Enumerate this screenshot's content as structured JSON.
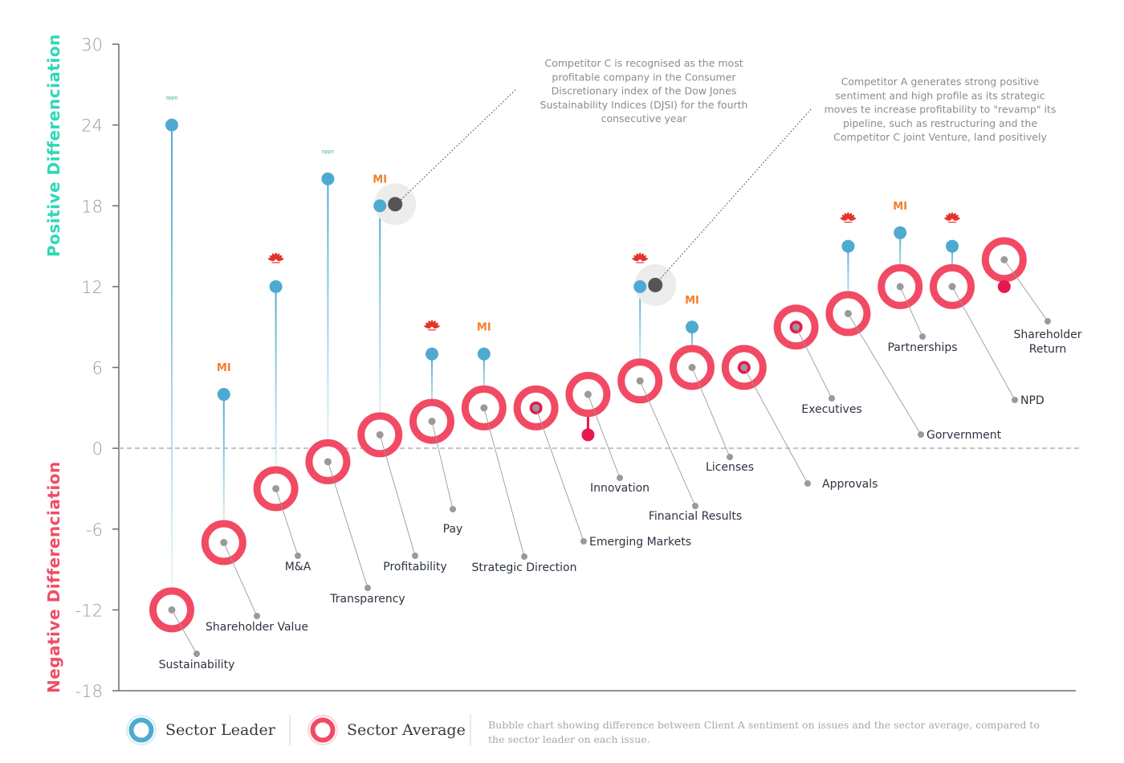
{
  "chart_data": {
    "type": "scatter",
    "ylim": [
      -18,
      30
    ],
    "yticks": [
      30,
      24,
      18,
      12,
      6,
      0,
      -6,
      -12,
      -18
    ],
    "y_title_positive": "Positive Differenciation",
    "y_title_negative": "Negative Differenciation",
    "colors": {
      "leader": "#4eaad0",
      "average_ring": "#f24a64",
      "client": "#e8174d",
      "highlight": "#555555",
      "positive_title": "#2ed8b6",
      "negative_title": "#f04e64"
    },
    "categories": [
      {
        "label": "Sustainability",
        "average": -12,
        "leader": 24,
        "leader_brand": "oppo"
      },
      {
        "label": "Shareholder Value",
        "average": -7,
        "leader": 4,
        "leader_brand": "mi"
      },
      {
        "label": "M&A",
        "average": -3,
        "leader": 12,
        "leader_brand": "huawei"
      },
      {
        "label": "Transparency",
        "average": -1,
        "leader": 20,
        "leader_brand": "oppo"
      },
      {
        "label": "Profitability",
        "average": 1,
        "leader": 18,
        "leader_brand": "mi",
        "highlight": 18
      },
      {
        "label": "Pay",
        "average": 2,
        "leader": 7,
        "leader_brand": "huawei"
      },
      {
        "label": "Strategic Direction",
        "average": 3,
        "leader": 7,
        "leader_brand": "mi"
      },
      {
        "label": "Emerging Markets",
        "average": 3,
        "client": 3
      },
      {
        "label": "Innovation",
        "average": 4,
        "client": 1
      },
      {
        "label": "Financial Results",
        "average": 5,
        "leader": 12,
        "leader_brand": "huawei",
        "highlight": 12
      },
      {
        "label": "Licenses",
        "average": 6,
        "leader": 9,
        "leader_brand": "mi"
      },
      {
        "label": "Approvals",
        "average": 6,
        "client": 6
      },
      {
        "label": "Executives",
        "average": 9,
        "client": 9
      },
      {
        "label": "Gorvernment",
        "average": 10,
        "leader": 15,
        "leader_brand": "huawei"
      },
      {
        "label": "Partnerships",
        "average": 12,
        "leader": 16,
        "leader_brand": "mi"
      },
      {
        "label": "NPD",
        "average": 12,
        "leader": 15,
        "leader_brand": "huawei"
      },
      {
        "label": "Shareholder Return",
        "average": 14,
        "client": 12
      }
    ],
    "annotations": [
      {
        "lines": [
          "Competitor C is recognised as the most",
          "profitable company in the Consumer",
          "Discretionary index of the Dow Jones",
          "Sustainability Indices (DJSI) for the fourth",
          "consecutive year"
        ]
      },
      {
        "lines": [
          "Competitor A generates strong positive",
          "sentiment and high profile as its strategic",
          "moves te increase profitability to \"revamp\" its",
          "pipeline, such as restructuring and the",
          "Competitor C joint Venture, land positively"
        ]
      }
    ],
    "brand_marks": {
      "mi": "MI",
      "oppo": "oppo"
    },
    "legend": [
      {
        "label": "Sector Leader",
        "color": "#4eaad0"
      },
      {
        "label": "Sector Average",
        "color": "#f24a64"
      }
    ],
    "caption_lines": [
      "Bubble chart showing difference between Client A sentiment on issues and the sector average, compared to",
      "the sector leader on each issue."
    ]
  }
}
